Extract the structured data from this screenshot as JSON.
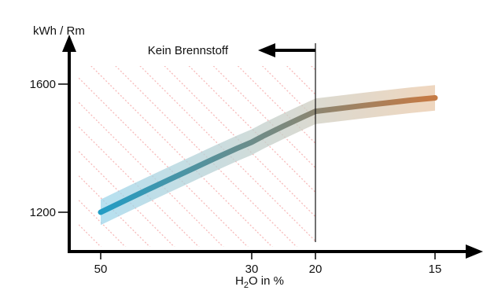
{
  "chart_data": {
    "type": "line",
    "title": "",
    "ylabel": "kWh / Rm",
    "xlabel_parts": {
      "pre": "H",
      "sub": "2",
      "post": "O in %"
    },
    "x_direction": "reversed",
    "x_ticks": [
      50,
      30,
      20,
      15
    ],
    "y_ticks": [
      1200,
      1600
    ],
    "annotation": {
      "text": "Kein Brennstoff",
      "x_start": 20,
      "arrow_direction": "left"
    },
    "series": [
      {
        "x": [
          50,
          47,
          44,
          41,
          38,
          35,
          32,
          30,
          28,
          25,
          22,
          20,
          18,
          16,
          15
        ],
        "y": [
          1200,
          1234,
          1268,
          1301,
          1334,
          1367,
          1399,
          1419,
          1440,
          1469,
          1497,
          1515,
          1533,
          1550,
          1557
        ]
      }
    ],
    "uncertainty_band_half_width": 40,
    "colors": {
      "line_start": "#1f9dc7",
      "line_end": "#c47a45",
      "band_start": "#9ad6ee",
      "band_end": "#e9c9aa",
      "hatch": "#f39a9a"
    }
  }
}
